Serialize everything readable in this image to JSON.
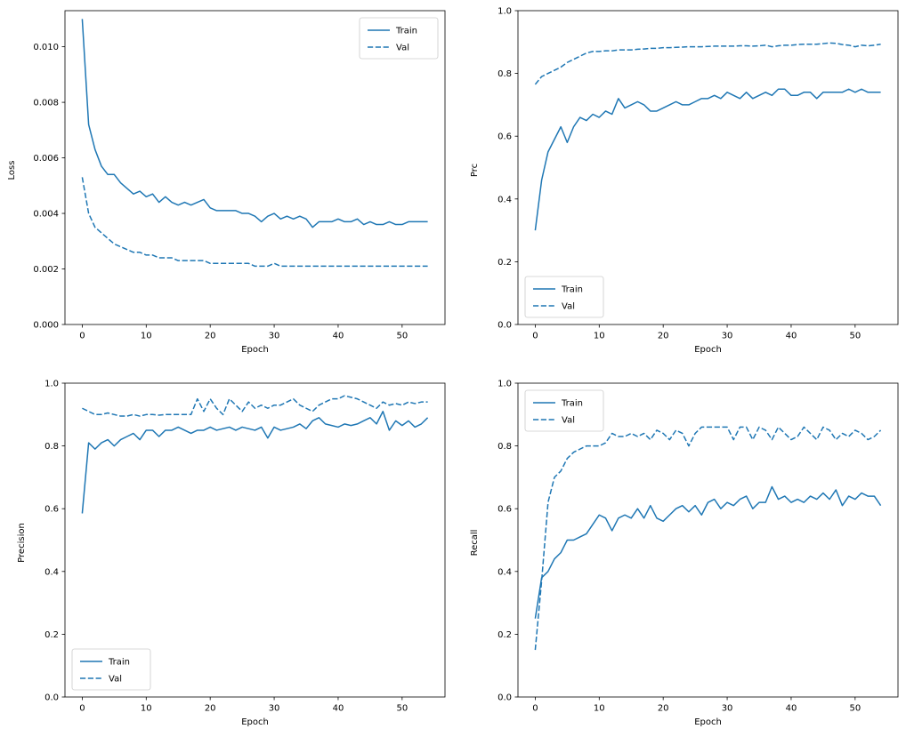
{
  "figure": {
    "background": "#ffffff",
    "accent": "#1f77b4"
  },
  "chart_data": [
    {
      "id": "loss",
      "type": "line",
      "title": "",
      "xlabel": "Epoch",
      "ylabel": "Loss",
      "xlim": [
        -2.7,
        56.7
      ],
      "ylim": [
        0,
        0.0113
      ],
      "xticks": [
        0,
        10,
        20,
        30,
        40,
        50
      ],
      "xtick_labels": [
        "0",
        "10",
        "20",
        "30",
        "40",
        "50"
      ],
      "yticks": [
        0.0,
        0.002,
        0.004,
        0.006,
        0.008,
        0.01
      ],
      "ytick_labels": [
        "0.000",
        "0.002",
        "0.004",
        "0.006",
        "0.008",
        "0.010"
      ],
      "grid": false,
      "legend": {
        "position": "upper right",
        "entries": [
          {
            "label": "Train",
            "style": "solid"
          },
          {
            "label": "Val",
            "style": "dashed"
          }
        ]
      },
      "x_start": 0,
      "x_step": 1,
      "series": [
        {
          "name": "Train",
          "line": "solid",
          "color": "#1f77b4",
          "values": [
            0.011,
            0.0072,
            0.0063,
            0.0057,
            0.0054,
            0.0054,
            0.0051,
            0.0049,
            0.0047,
            0.0048,
            0.0046,
            0.0047,
            0.0044,
            0.0046,
            0.0044,
            0.0043,
            0.0044,
            0.0043,
            0.0044,
            0.0045,
            0.0042,
            0.0041,
            0.0041,
            0.0041,
            0.0041,
            0.004,
            0.004,
            0.0039,
            0.0037,
            0.0039,
            0.004,
            0.0038,
            0.0039,
            0.0038,
            0.0039,
            0.0038,
            0.0035,
            0.0037,
            0.0037,
            0.0037,
            0.0038,
            0.0037,
            0.0037,
            0.0038,
            0.0036,
            0.0037,
            0.0036,
            0.0036,
            0.0037,
            0.0036,
            0.0036,
            0.0037,
            0.0037,
            0.0037,
            0.0037
          ]
        },
        {
          "name": "Val",
          "line": "dashed",
          "color": "#1f77b4",
          "values": [
            0.0053,
            0.004,
            0.0035,
            0.0033,
            0.0031,
            0.0029,
            0.0028,
            0.0027,
            0.0026,
            0.0026,
            0.0025,
            0.0025,
            0.0024,
            0.0024,
            0.0024,
            0.0023,
            0.0023,
            0.0023,
            0.0023,
            0.0023,
            0.0022,
            0.0022,
            0.0022,
            0.0022,
            0.0022,
            0.0022,
            0.0022,
            0.0021,
            0.0021,
            0.0021,
            0.0022,
            0.0021,
            0.0021,
            0.0021,
            0.0021,
            0.0021,
            0.0021,
            0.0021,
            0.0021,
            0.0021,
            0.0021,
            0.0021,
            0.0021,
            0.0021,
            0.0021,
            0.0021,
            0.0021,
            0.0021,
            0.0021,
            0.0021,
            0.0021,
            0.0021,
            0.0021,
            0.0021,
            0.0021
          ]
        }
      ]
    },
    {
      "id": "prc",
      "type": "line",
      "title": "",
      "xlabel": "Epoch",
      "ylabel": "Prc",
      "xlim": [
        -2.7,
        56.7
      ],
      "ylim": [
        0,
        1.0
      ],
      "xticks": [
        0,
        10,
        20,
        30,
        40,
        50
      ],
      "xtick_labels": [
        "0",
        "10",
        "20",
        "30",
        "40",
        "50"
      ],
      "yticks": [
        0.0,
        0.2,
        0.4,
        0.6,
        0.8,
        1.0
      ],
      "ytick_labels": [
        "0.0",
        "0.2",
        "0.4",
        "0.6",
        "0.8",
        "1.0"
      ],
      "grid": false,
      "legend": {
        "position": "lower left",
        "entries": [
          {
            "label": "Train",
            "style": "solid"
          },
          {
            "label": "Val",
            "style": "dashed"
          }
        ]
      },
      "x_start": 0,
      "x_step": 1,
      "series": [
        {
          "name": "Train",
          "line": "solid",
          "color": "#1f77b4",
          "values": [
            0.3,
            0.46,
            0.55,
            0.59,
            0.63,
            0.58,
            0.63,
            0.66,
            0.65,
            0.67,
            0.66,
            0.68,
            0.67,
            0.72,
            0.69,
            0.7,
            0.71,
            0.7,
            0.68,
            0.68,
            0.69,
            0.7,
            0.71,
            0.7,
            0.7,
            0.71,
            0.72,
            0.72,
            0.73,
            0.72,
            0.74,
            0.73,
            0.72,
            0.74,
            0.72,
            0.73,
            0.74,
            0.73,
            0.75,
            0.75,
            0.73,
            0.73,
            0.74,
            0.74,
            0.72,
            0.74,
            0.74,
            0.74,
            0.74,
            0.75,
            0.74,
            0.75,
            0.74,
            0.74,
            0.74
          ]
        },
        {
          "name": "Val",
          "line": "dashed",
          "color": "#1f77b4",
          "values": [
            0.765,
            0.79,
            0.8,
            0.81,
            0.82,
            0.835,
            0.845,
            0.855,
            0.865,
            0.87,
            0.87,
            0.872,
            0.872,
            0.875,
            0.875,
            0.875,
            0.877,
            0.878,
            0.88,
            0.88,
            0.882,
            0.882,
            0.883,
            0.884,
            0.885,
            0.885,
            0.885,
            0.886,
            0.887,
            0.887,
            0.887,
            0.887,
            0.888,
            0.888,
            0.887,
            0.888,
            0.89,
            0.885,
            0.888,
            0.89,
            0.89,
            0.892,
            0.893,
            0.893,
            0.893,
            0.895,
            0.897,
            0.896,
            0.892,
            0.89,
            0.885,
            0.89,
            0.888,
            0.89,
            0.893
          ]
        }
      ]
    },
    {
      "id": "precision",
      "type": "line",
      "title": "",
      "xlabel": "Epoch",
      "ylabel": "Precision",
      "xlim": [
        -2.7,
        56.7
      ],
      "ylim": [
        0,
        1.0
      ],
      "xticks": [
        0,
        10,
        20,
        30,
        40,
        50
      ],
      "xtick_labels": [
        "0",
        "10",
        "20",
        "30",
        "40",
        "50"
      ],
      "yticks": [
        0.0,
        0.2,
        0.4,
        0.6,
        0.8,
        1.0
      ],
      "ytick_labels": [
        "0.0",
        "0.2",
        "0.4",
        "0.6",
        "0.8",
        "1.0"
      ],
      "grid": false,
      "legend": {
        "position": "lower left",
        "entries": [
          {
            "label": "Train",
            "style": "solid"
          },
          {
            "label": "Val",
            "style": "dashed"
          }
        ]
      },
      "x_start": 0,
      "x_step": 1,
      "series": [
        {
          "name": "Train",
          "line": "solid",
          "color": "#1f77b4",
          "values": [
            0.585,
            0.81,
            0.79,
            0.81,
            0.82,
            0.8,
            0.82,
            0.83,
            0.84,
            0.82,
            0.85,
            0.85,
            0.83,
            0.85,
            0.85,
            0.86,
            0.85,
            0.84,
            0.85,
            0.85,
            0.86,
            0.85,
            0.855,
            0.86,
            0.85,
            0.86,
            0.855,
            0.85,
            0.86,
            0.825,
            0.86,
            0.85,
            0.855,
            0.86,
            0.87,
            0.855,
            0.88,
            0.89,
            0.87,
            0.865,
            0.86,
            0.87,
            0.865,
            0.87,
            0.88,
            0.89,
            0.87,
            0.91,
            0.85,
            0.88,
            0.865,
            0.88,
            0.86,
            0.87,
            0.89
          ]
        },
        {
          "name": "Val",
          "line": "dashed",
          "color": "#1f77b4",
          "values": [
            0.92,
            0.91,
            0.9,
            0.9,
            0.905,
            0.9,
            0.895,
            0.895,
            0.9,
            0.895,
            0.9,
            0.9,
            0.898,
            0.9,
            0.9,
            0.9,
            0.9,
            0.9,
            0.95,
            0.91,
            0.95,
            0.92,
            0.9,
            0.95,
            0.93,
            0.91,
            0.94,
            0.92,
            0.93,
            0.92,
            0.93,
            0.93,
            0.94,
            0.95,
            0.93,
            0.92,
            0.91,
            0.93,
            0.94,
            0.95,
            0.95,
            0.96,
            0.955,
            0.95,
            0.94,
            0.93,
            0.92,
            0.94,
            0.93,
            0.935,
            0.93,
            0.94,
            0.935,
            0.94,
            0.94
          ]
        }
      ]
    },
    {
      "id": "recall",
      "type": "line",
      "title": "",
      "xlabel": "Epoch",
      "ylabel": "Recall",
      "xlim": [
        -2.7,
        56.7
      ],
      "ylim": [
        0,
        1.0
      ],
      "xticks": [
        0,
        10,
        20,
        30,
        40,
        50
      ],
      "xtick_labels": [
        "0",
        "10",
        "20",
        "30",
        "40",
        "50"
      ],
      "yticks": [
        0.0,
        0.2,
        0.4,
        0.6,
        0.8,
        1.0
      ],
      "ytick_labels": [
        "0.0",
        "0.2",
        "0.4",
        "0.6",
        "0.8",
        "1.0"
      ],
      "grid": false,
      "legend": {
        "position": "upper left",
        "entries": [
          {
            "label": "Train",
            "style": "solid"
          },
          {
            "label": "Val",
            "style": "dashed"
          }
        ]
      },
      "x_start": 0,
      "x_step": 1,
      "series": [
        {
          "name": "Train",
          "line": "solid",
          "color": "#1f77b4",
          "values": [
            0.25,
            0.38,
            0.4,
            0.44,
            0.46,
            0.5,
            0.5,
            0.51,
            0.52,
            0.55,
            0.58,
            0.57,
            0.53,
            0.57,
            0.58,
            0.57,
            0.6,
            0.57,
            0.61,
            0.57,
            0.56,
            0.58,
            0.6,
            0.61,
            0.59,
            0.61,
            0.58,
            0.62,
            0.63,
            0.6,
            0.62,
            0.61,
            0.63,
            0.64,
            0.6,
            0.62,
            0.62,
            0.67,
            0.63,
            0.64,
            0.62,
            0.63,
            0.62,
            0.64,
            0.63,
            0.65,
            0.63,
            0.66,
            0.61,
            0.64,
            0.63,
            0.65,
            0.64,
            0.64,
            0.61
          ]
        },
        {
          "name": "Val",
          "line": "dashed",
          "color": "#1f77b4",
          "values": [
            0.15,
            0.37,
            0.62,
            0.7,
            0.72,
            0.76,
            0.78,
            0.79,
            0.8,
            0.8,
            0.8,
            0.81,
            0.84,
            0.83,
            0.83,
            0.84,
            0.83,
            0.84,
            0.82,
            0.85,
            0.84,
            0.82,
            0.85,
            0.84,
            0.8,
            0.84,
            0.86,
            0.86,
            0.86,
            0.86,
            0.86,
            0.82,
            0.86,
            0.86,
            0.82,
            0.86,
            0.85,
            0.82,
            0.86,
            0.84,
            0.82,
            0.83,
            0.86,
            0.84,
            0.82,
            0.86,
            0.85,
            0.82,
            0.84,
            0.83,
            0.85,
            0.84,
            0.82,
            0.83,
            0.85
          ]
        }
      ]
    }
  ]
}
